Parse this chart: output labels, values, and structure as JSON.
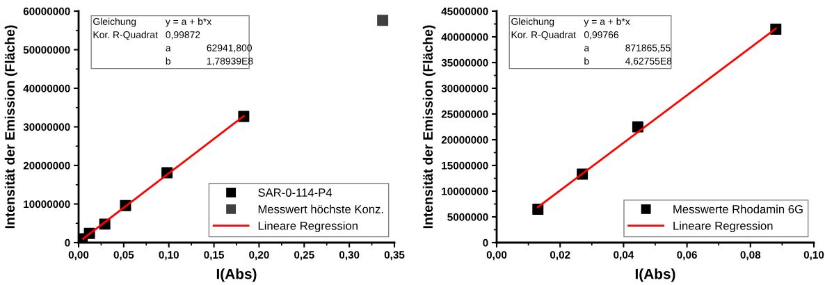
{
  "chart_data": [
    {
      "type": "scatter",
      "xlabel": "I(Abs)",
      "ylabel": "Intensität der Emission (Fläche)",
      "series": [
        {
          "name": "SAR-0-114-P4",
          "color": "#000000",
          "marker": "square",
          "x": [
            0.004,
            0.012,
            0.029,
            0.052,
            0.098,
            0.183
          ],
          "values": [
            1000000,
            2400000,
            4800000,
            9600000,
            18100000,
            32700000
          ]
        },
        {
          "name": "Messwert höchste Konz.",
          "color": "#404040",
          "marker": "square",
          "x": [
            0.337
          ],
          "values": [
            57600000
          ]
        },
        {
          "name": "Lineare Regression",
          "type": "line",
          "color": "#ff0000",
          "marker": "none",
          "line_style": "solid",
          "x": [
            0.005,
            0.183
          ],
          "values": [
            1000000,
            32800000
          ]
        }
      ],
      "xlim": [
        0,
        0.35
      ],
      "xticks": [
        {
          "value": 0,
          "label": "0,00"
        },
        {
          "value": 0.05,
          "label": "0,05"
        },
        {
          "value": 0.1,
          "label": "0,10"
        },
        {
          "value": 0.15,
          "label": "0,15"
        },
        {
          "value": 0.2,
          "label": "0,20"
        },
        {
          "value": 0.25,
          "label": "0,25"
        },
        {
          "value": 0.3,
          "label": "0,30"
        },
        {
          "value": 0.35,
          "label": "0,35"
        }
      ],
      "ylim": [
        0,
        60000000
      ],
      "yticks": [
        0,
        10000000,
        20000000,
        30000000,
        40000000,
        50000000,
        60000000
      ],
      "grid": false,
      "legend": "bottom right",
      "annotations": [
        "Gleichung",
        "y = a + b*x",
        "Kor. R-Quadrat",
        "0,99872",
        "a",
        "62941,800",
        "b",
        "1,78939E8"
      ]
    },
    {
      "type": "scatter",
      "xlabel": "I(Abs)",
      "ylabel": "Intensität der Emission (Fläche)",
      "series": [
        {
          "name": "Messwerte Rhodamin 6G",
          "color": "#000000",
          "marker": "square",
          "x": [
            0.013,
            0.027,
            0.0445,
            0.088
          ],
          "values": [
            6500000,
            13300000,
            22500000,
            41500000
          ]
        },
        {
          "name": "Lineare Regression",
          "type": "line",
          "color": "#ff0000",
          "marker": "none",
          "line_style": "solid",
          "x": [
            0.013,
            0.088
          ],
          "values": [
            6900000,
            41600000
          ]
        }
      ],
      "xlim": [
        0,
        0.1
      ],
      "xticks": [
        {
          "value": 0,
          "label": "0,00"
        },
        {
          "value": 0.02,
          "label": "0,02"
        },
        {
          "value": 0.04,
          "label": "0,04"
        },
        {
          "value": 0.06,
          "label": "0,06"
        },
        {
          "value": 0.08,
          "label": "0,08"
        },
        {
          "value": 0.1,
          "label": "0,10"
        }
      ],
      "ylim": [
        0,
        45000000
      ],
      "yticks": [
        0,
        5000000,
        10000000,
        15000000,
        20000000,
        25000000,
        30000000,
        35000000,
        40000000,
        45000000
      ],
      "grid": false,
      "legend": "bottom right",
      "annotations": [
        "Gleichung",
        "y = a + b*x",
        "Kor. R-Quadrat",
        "0,99766",
        "a",
        "871865,55",
        "b",
        "4,62755E8"
      ]
    }
  ]
}
